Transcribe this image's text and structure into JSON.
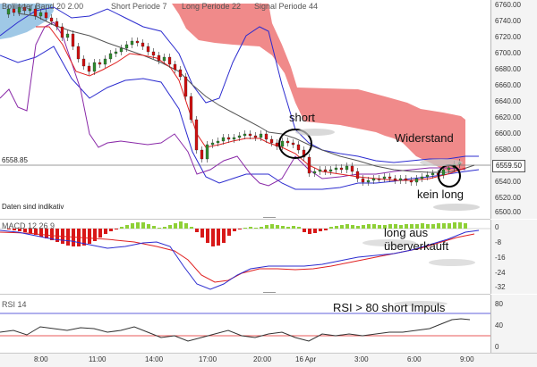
{
  "main_chart": {
    "legend": {
      "bollinger": "Bollinger Band  20  2.00",
      "short": "Short Periode  7",
      "long": "Long Periode  22",
      "signal": "Signal Periode  44"
    },
    "price_ticks": [
      "6760.00",
      "6740.00",
      "6720.00",
      "6700.00",
      "6680.00",
      "6660.00",
      "6640.00",
      "6620.00",
      "6600.00",
      "6580.00",
      "6560.00",
      "6540.00",
      "6520.00",
      "6500.00"
    ],
    "left_level_label": "6558.85",
    "current_price_badge": "6559.50",
    "note": "Daten sind indikativ",
    "annotations": {
      "short": "short",
      "resistance": "Widerstand",
      "no_long": "kein long"
    }
  },
  "macd_panel": {
    "label": "MACD  12  26  9",
    "ticks": [
      "0",
      "-8",
      "-16",
      "-24",
      "-32"
    ],
    "annotation_line1": "long aus",
    "annotation_line2": "überverkauft"
  },
  "rsi_panel": {
    "label": "RSI  14",
    "ticks": [
      "80",
      "40",
      "0"
    ],
    "annotation": "RSI > 80 short Impuls"
  },
  "x_axis": {
    "labels": [
      "8:00",
      "11:00",
      "14:00",
      "17:00",
      "20:00",
      "16 Apr",
      "3:00",
      "6:00",
      "9:00"
    ]
  },
  "colors": {
    "cloud_red": "#f08a8a",
    "cloud_blue": "#9fc8e6",
    "candle_green": "#2e8b2e",
    "candle_red": "#d01010",
    "bollinger": "#2c2ccf",
    "signal_line": "#8a2aa8",
    "long_ma": "#555555",
    "short_ma": "#e02020",
    "macd_pos": "#8ed036",
    "macd_neg": "#d81818"
  }
}
